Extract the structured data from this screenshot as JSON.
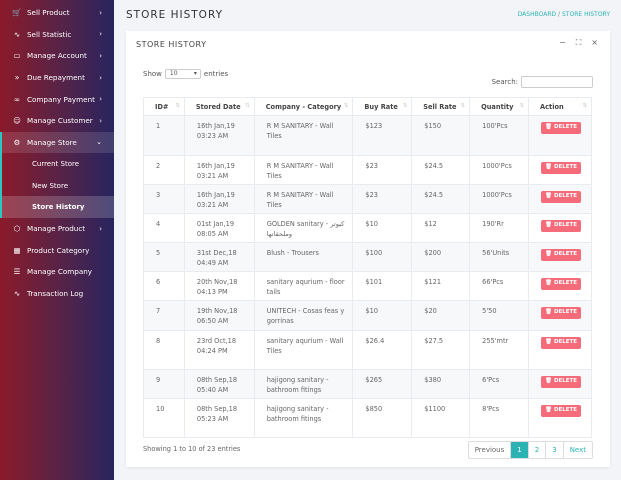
{
  "sidebar": {
    "items": [
      {
        "label": "Sell Product",
        "icon": "cart-icon",
        "glyph": "🛒",
        "chev": "›"
      },
      {
        "label": "Sell Statistic",
        "icon": "pulse-icon",
        "glyph": "∿",
        "chev": "›"
      },
      {
        "label": "Manage Account",
        "icon": "card-icon",
        "glyph": "▭",
        "chev": "›"
      },
      {
        "label": "Due Repayment",
        "icon": "fast-forward-icon",
        "glyph": "»",
        "chev": "›"
      },
      {
        "label": "Company Payment",
        "icon": "link-icon",
        "glyph": "∞",
        "chev": "›"
      },
      {
        "label": "Manage Customer",
        "icon": "users-icon",
        "glyph": "☺",
        "chev": "›"
      },
      {
        "label": "Manage Store",
        "icon": "store-icon",
        "glyph": "⚙",
        "chev": "⌄"
      }
    ],
    "sub_items": [
      {
        "label": "Current Store"
      },
      {
        "label": "New Store"
      },
      {
        "label": "Store History"
      }
    ],
    "items_after": [
      {
        "label": "Manage Product",
        "icon": "box-icon",
        "glyph": "⬡",
        "chev": "›"
      },
      {
        "label": "Product Category",
        "icon": "grid-icon",
        "glyph": "▦",
        "chev": ""
      },
      {
        "label": "Manage Company",
        "icon": "server-icon",
        "glyph": "☰",
        "chev": ""
      },
      {
        "label": "Transaction Log",
        "icon": "pulse-icon",
        "glyph": "∿",
        "chev": ""
      }
    ]
  },
  "header": {
    "title": "STORE HISTORY",
    "breadcrumb": [
      "DASHBOARD",
      "/",
      "STORE HISTORY"
    ]
  },
  "card": {
    "title": "STORE HISTORY",
    "tools": [
      "−",
      "⛶",
      "×"
    ]
  },
  "controls": {
    "show_label": "Show",
    "entries_value": "10",
    "entries_label": "entries",
    "search_label": "Search:",
    "search_value": ""
  },
  "table": {
    "columns": [
      "ID#",
      "Stored Date",
      "Company - Category",
      "Buy Rate",
      "Sell Rate",
      "Quantity",
      "Action"
    ],
    "sort_glyph": "⇅",
    "action_label": "🗑 DELETE",
    "rows": [
      [
        "1",
        "16th Jan,19 03:23 AM",
        "R M SANITARY - Wall Tiles",
        "$123",
        "$150",
        "100'Pcs"
      ],
      [
        "2",
        "16th Jan,19 03:21 AM",
        "R M SANITARY - Wall Tiles",
        "$23",
        "$24.5",
        "1000'Pcs"
      ],
      [
        "3",
        "16th Jan,19 03:21 AM",
        "R M SANITARY - Wall Tiles",
        "$23",
        "$24.5",
        "1000'Pcs"
      ],
      [
        "4",
        "01st Jan,19 08:05 AM",
        "GOLDEN sanitary - كيوتر وملحقاتها",
        "$10",
        "$12",
        "190'Rr"
      ],
      [
        "5",
        "31st Dec,18 04:49 AM",
        "Blush - Trousers",
        "$100",
        "$200",
        "56'Units"
      ],
      [
        "6",
        "20th Nov,18 04:13 PM",
        "sanitary aqurium - floor tails",
        "$101",
        "$121",
        "66'Pcs"
      ],
      [
        "7",
        "19th Nov,18 06:50 AM",
        "UNITECH - Cosas feas y gorrinas",
        "$10",
        "$20",
        "5'50"
      ],
      [
        "8",
        "23rd Oct,18 04:24 PM",
        "sanitary aqurium - Wall Tiles",
        "$26.4",
        "$27.5",
        "255'mtr"
      ],
      [
        "9",
        "08th Sep,18 05:40 AM",
        "hajigong sanitary - bathroom fitings",
        "$265",
        "$380",
        "6'Pcs"
      ],
      [
        "10",
        "08th Sep,18 05:23 AM",
        "hajigong sanitary - bathroom fitings",
        "$850",
        "$1100",
        "8'Pcs"
      ]
    ]
  },
  "footer": {
    "info": "Showing 1 to 10 of 23 entries",
    "pages": [
      "Previous",
      "1",
      "2",
      "3",
      "Next"
    ],
    "current_page": "1"
  },
  "colors": {
    "accent": "#2bb3b3",
    "delete": "#f56b7a"
  }
}
